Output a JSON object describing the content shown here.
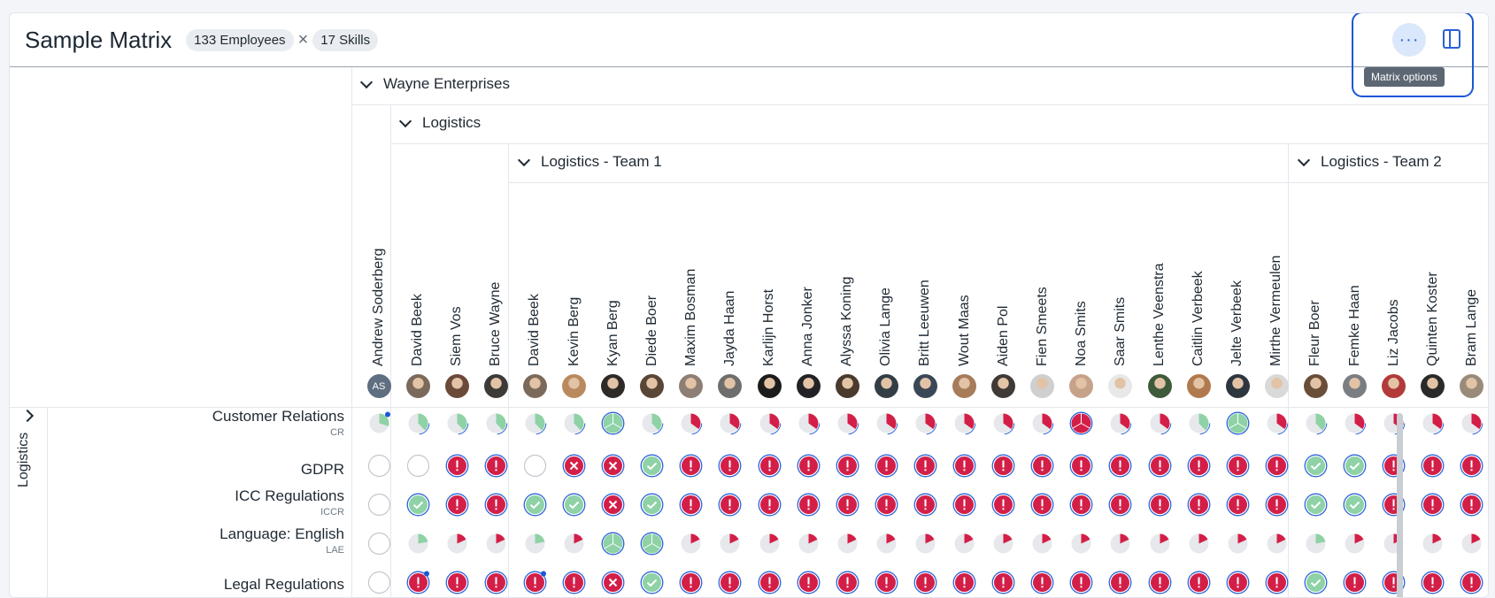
{
  "header": {
    "title": "Sample Matrix",
    "employees_chip": "133 Employees",
    "separator": "×",
    "skills_chip": "17 Skills",
    "options_icon": "ellipsis-icon",
    "options_glyph": "···",
    "options_tooltip": "Matrix options",
    "sidebar_icon": "sidebar-panel-icon"
  },
  "groups": {
    "company": "Wayne Enterprises",
    "department": "Logistics",
    "team1": "Logistics - Team 1",
    "team2": "Logistics - Team 2"
  },
  "row_group": {
    "label": "Logistics"
  },
  "employees": [
    {
      "name": "Andrew Soderberg",
      "initials": "AS",
      "color": "#5f6e80"
    },
    {
      "name": "David Beek",
      "color": "#7b6a5c"
    },
    {
      "name": "Siem Vos",
      "color": "#6b4a3a"
    },
    {
      "name": "Bruce Wayne",
      "color": "#3d3a38"
    },
    {
      "name": "David Beek",
      "color": "#7b6a5c"
    },
    {
      "name": "Kevin Berg",
      "color": "#b98a5e"
    },
    {
      "name": "Kyan Berg",
      "color": "#2e2a28"
    },
    {
      "name": "Diede Boer",
      "color": "#5a4636"
    },
    {
      "name": "Maxim Bosman",
      "color": "#8d7f75"
    },
    {
      "name": "Jayda Haan",
      "color": "#6e6e6e"
    },
    {
      "name": "Karlijn Horst",
      "color": "#1c1c1c"
    },
    {
      "name": "Anna Jonker",
      "color": "#222226"
    },
    {
      "name": "Alyssa Koning",
      "color": "#4a3a2e"
    },
    {
      "name": "Olivia Lange",
      "color": "#333d45"
    },
    {
      "name": "Britt Leeuwen",
      "color": "#3a4757"
    },
    {
      "name": "Wout Maas",
      "color": "#a67c5b"
    },
    {
      "name": "Aiden Pol",
      "color": "#3f3a36"
    },
    {
      "name": "Fien Smeets",
      "color": "#cfcfcf"
    },
    {
      "name": "Noa Smits",
      "color": "#c7a28a"
    },
    {
      "name": "Saar Smits",
      "color": "#e8e8e8"
    },
    {
      "name": "Lenthe Veenstra",
      "color": "#3f5a3a"
    },
    {
      "name": "Caitlin Verbeek",
      "color": "#b07a4e"
    },
    {
      "name": "Jelte Verbeek",
      "color": "#2e3640"
    },
    {
      "name": "Mirthe Vermeulen",
      "color": "#d9d9d9"
    },
    {
      "name": "Fleur Boer",
      "color": "#6a4e3a"
    },
    {
      "name": "Femke Haan",
      "color": "#7a7e82"
    },
    {
      "name": "Liz Jacobs",
      "color": "#b23a3a"
    },
    {
      "name": "Quinten Koster",
      "color": "#2a2a2a"
    },
    {
      "name": "Bram Lange",
      "color": "#9a8a7a"
    }
  ],
  "skills": [
    {
      "name": "Customer Relations",
      "code": "CR"
    },
    {
      "name": "GDPR",
      "code": ""
    },
    {
      "name": "ICC Regulations",
      "code": "ICCR"
    },
    {
      "name": "Language: English",
      "code": "LAE"
    },
    {
      "name": "Legal Regulations",
      "code": ""
    }
  ],
  "cell_kinds": {
    "e": "empty-circle-icon",
    "c": "check-icon",
    "x": "cross-icon",
    "w": "warning-icon",
    "pg": "pie-green-icon",
    "pr": "pie-red-icon",
    "sg": "small-pie-green-icon",
    "sr": "small-pie-red-icon",
    "fr": "full-pie-red-icon",
    "fg": "full-pie-green-icon",
    "pd": "pie-grey-dot-icon",
    "wd": "warning-dot-icon"
  },
  "colors": {
    "green": "#8ed2a6",
    "red": "#d31f48",
    "blue": "#2d63d8",
    "grey": "#e6e8eb",
    "dot": "#1a57d6"
  },
  "matrix": [
    [
      "pd",
      "pg",
      "pg",
      "pg",
      "pg",
      "pg",
      "fg",
      "pg",
      "pr",
      "pr",
      "pr",
      "pr",
      "pr",
      "pr",
      "pr",
      "pr",
      "pr",
      "pr",
      "fr",
      "pr",
      "pr",
      "pg",
      "fg",
      "pr",
      "pg",
      "pr",
      "pr",
      "pr",
      "pr"
    ],
    [
      "e",
      "e",
      "w",
      "w",
      "e",
      "x",
      "x",
      "c",
      "w",
      "w",
      "w",
      "w",
      "w",
      "w",
      "w",
      "w",
      "w",
      "w",
      "w",
      "w",
      "w",
      "w",
      "w",
      "w",
      "c",
      "c",
      "w",
      "w",
      "w"
    ],
    [
      "e",
      "c",
      "w",
      "w",
      "c",
      "c",
      "x",
      "c",
      "w",
      "w",
      "w",
      "w",
      "w",
      "w",
      "w",
      "w",
      "w",
      "w",
      "w",
      "w",
      "w",
      "w",
      "w",
      "w",
      "c",
      "c",
      "w",
      "w",
      "w"
    ],
    [
      "e",
      "sg",
      "sr",
      "sr",
      "sg",
      "sr",
      "fg",
      "fg",
      "sr",
      "sr",
      "sr",
      "sr",
      "sr",
      "sr",
      "sr",
      "sr",
      "sr",
      "sr",
      "sr",
      "sr",
      "sr",
      "sr",
      "sr",
      "sr",
      "sg",
      "sr",
      "sr",
      "sr",
      "sr"
    ],
    [
      "e",
      "wd",
      "w",
      "w",
      "wd",
      "w",
      "x",
      "c",
      "w",
      "w",
      "w",
      "w",
      "w",
      "w",
      "w",
      "w",
      "w",
      "w",
      "w",
      "w",
      "w",
      "w",
      "w",
      "w",
      "c",
      "w",
      "w",
      "w",
      "w"
    ]
  ]
}
